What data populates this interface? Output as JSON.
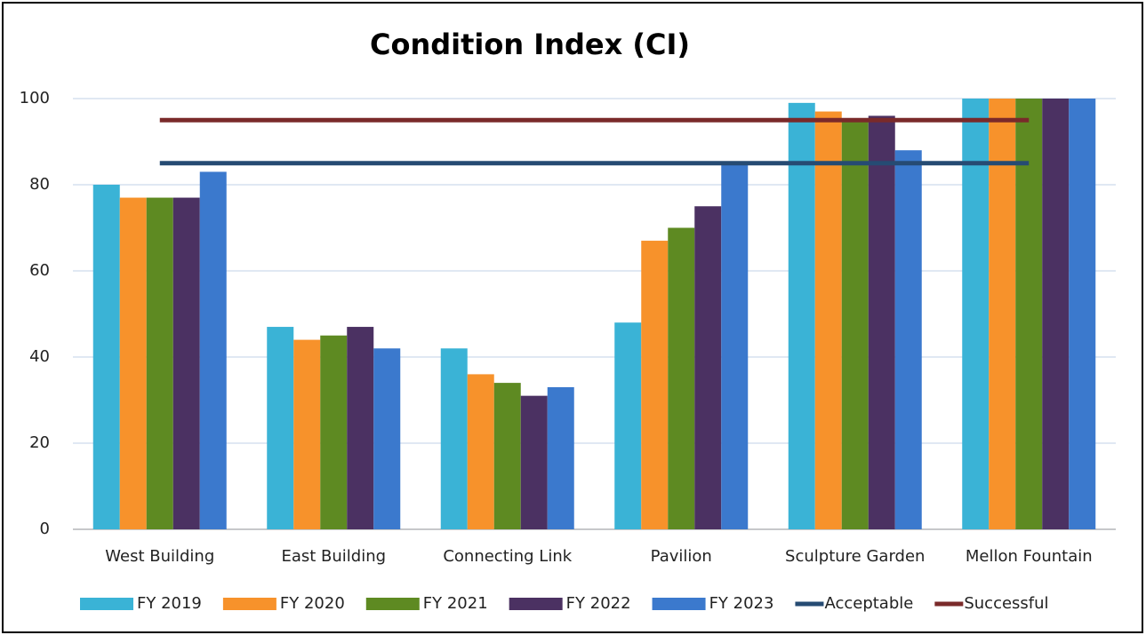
{
  "chart_data": {
    "type": "bar",
    "title": "Condition Index (CI)",
    "categories": [
      "West Building",
      "East Building",
      "Connecting Link",
      "Pavilion",
      "Sculpture Garden",
      "Mellon Fountain"
    ],
    "series": [
      {
        "name": "FY 2019",
        "color": "#3ab3d6",
        "values": [
          80,
          47,
          42,
          48,
          99,
          100
        ]
      },
      {
        "name": "FY 2020",
        "color": "#f7922b",
        "values": [
          77,
          44,
          36,
          67,
          97,
          100
        ]
      },
      {
        "name": "FY 2021",
        "color": "#5e8a22",
        "values": [
          77,
          45,
          34,
          70,
          95,
          100
        ]
      },
      {
        "name": "FY 2022",
        "color": "#4b3162",
        "values": [
          77,
          47,
          31,
          75,
          96,
          100
        ]
      },
      {
        "name": "FY 2023",
        "color": "#3b79cd",
        "values": [
          83,
          42,
          33,
          85,
          88,
          100
        ]
      },
      {
        "name": "Acceptable",
        "type": "line",
        "color": "#264b73",
        "values": [
          85,
          85,
          85,
          85,
          85,
          85
        ]
      },
      {
        "name": "Successful",
        "type": "line",
        "color": "#7a2a2a",
        "values": [
          95,
          95,
          95,
          95,
          95,
          95
        ]
      }
    ],
    "ylim": [
      0,
      100
    ],
    "yticks": [
      0,
      20,
      40,
      60,
      80,
      100
    ],
    "grid": true,
    "legend": "bottom"
  }
}
